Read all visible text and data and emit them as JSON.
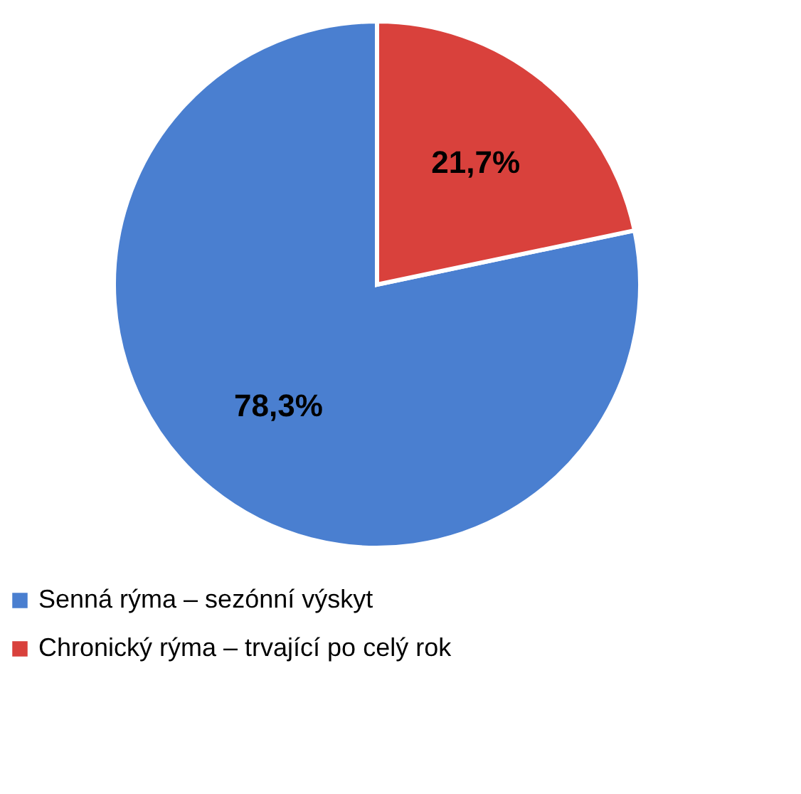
{
  "chart_data": {
    "type": "pie",
    "categories": [
      "Senná rýma – sezónní výskyt",
      "Chronický rýma – trvající po celý rok"
    ],
    "values": [
      78.3,
      21.7
    ],
    "colors": [
      "#4a7fd0",
      "#d9413c"
    ],
    "value_labels": [
      "78,3%",
      "21,7%"
    ],
    "legend": "bottom"
  }
}
